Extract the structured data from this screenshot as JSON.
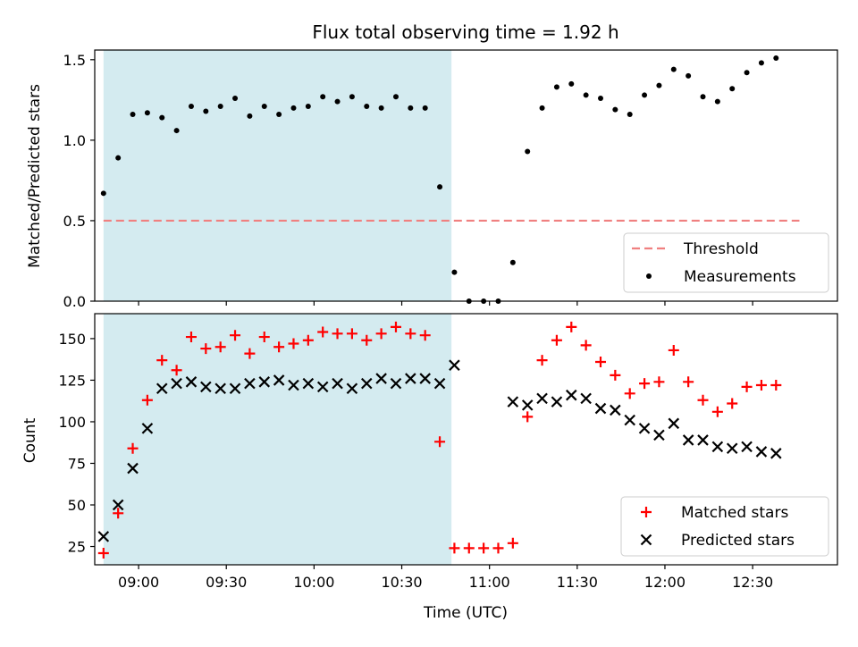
{
  "chart_data": {
    "title": "Flux total observing time = 1.92 h",
    "xlabel": "Time (UTC)",
    "x_unit": "time of day (HH:MM)",
    "xlim": [
      "08:45",
      "12:59"
    ],
    "xticks": [
      "09:00",
      "09:30",
      "10:00",
      "10:30",
      "11:00",
      "11:30",
      "12:00",
      "12:30"
    ],
    "shaded_span": {
      "from": "08:48",
      "to": "10:47",
      "color": "#d4ebf0"
    },
    "panels": [
      {
        "type": "scatter",
        "ylabel": "Matched/Predicted stars",
        "ylim": [
          0,
          1.56
        ],
        "yticks": [
          "0.0",
          "0.5",
          "1.0",
          "1.5"
        ],
        "legend_position": "lower right",
        "threshold": {
          "name": "Threshold",
          "value": 0.5,
          "color": "#f08080",
          "style": "dashed",
          "from": "08:48",
          "to": "12:46"
        },
        "series": [
          {
            "name": "Measurements",
            "marker": "dot",
            "color": "#000000",
            "x": [
              "08:48",
              "08:53",
              "08:58",
              "09:03",
              "09:08",
              "09:13",
              "09:18",
              "09:23",
              "09:28",
              "09:33",
              "09:38",
              "09:43",
              "09:48",
              "09:53",
              "09:58",
              "10:03",
              "10:08",
              "10:13",
              "10:18",
              "10:23",
              "10:28",
              "10:33",
              "10:38",
              "10:43",
              "10:48",
              "10:53",
              "10:58",
              "11:03",
              "11:08",
              "11:13",
              "11:18",
              "11:23",
              "11:28",
              "11:33",
              "11:38",
              "11:43",
              "11:48",
              "11:53",
              "11:58",
              "12:03",
              "12:08",
              "12:13",
              "12:18",
              "12:23",
              "12:28",
              "12:33",
              "12:38",
              "12:43",
              "12:48"
            ],
            "y": [
              0.67,
              0.89,
              1.16,
              1.17,
              1.14,
              1.06,
              1.21,
              1.18,
              1.21,
              1.26,
              1.15,
              1.21,
              1.16,
              1.2,
              1.21,
              1.27,
              1.24,
              1.27,
              1.21,
              1.2,
              1.27,
              1.2,
              1.2,
              0.71,
              0.18,
              0.0,
              0.0,
              0.0,
              0.24,
              0.93,
              1.2,
              1.33,
              1.35,
              1.28,
              1.26,
              1.19,
              1.16,
              1.28,
              1.34,
              1.44,
              1.4,
              1.27,
              1.24,
              1.32,
              1.42,
              1.48,
              1.51,
              null,
              null
            ]
          }
        ]
      },
      {
        "type": "scatter",
        "ylabel": "Count",
        "ylim": [
          14,
          165
        ],
        "yticks": [
          "25",
          "50",
          "75",
          "100",
          "125",
          "150"
        ],
        "legend_position": "lower right",
        "series": [
          {
            "name": "Matched stars",
            "marker": "plus",
            "color": "#ff0000",
            "x": [
              "08:48",
              "08:53",
              "08:58",
              "09:03",
              "09:08",
              "09:13",
              "09:18",
              "09:23",
              "09:28",
              "09:33",
              "09:38",
              "09:43",
              "09:48",
              "09:53",
              "09:58",
              "10:03",
              "10:08",
              "10:13",
              "10:18",
              "10:23",
              "10:28",
              "10:33",
              "10:38",
              "10:43",
              "10:48",
              "10:53",
              "10:58",
              "11:03",
              "11:08",
              "11:13",
              "11:18",
              "11:23",
              "11:28",
              "11:33",
              "11:38",
              "11:43",
              "11:48",
              "11:53",
              "11:58",
              "12:03",
              "12:08",
              "12:13",
              "12:18",
              "12:23",
              "12:28",
              "12:33",
              "12:38",
              "12:43",
              "12:48"
            ],
            "y": [
              21,
              45,
              84,
              113,
              137,
              131,
              151,
              144,
              145,
              152,
              141,
              151,
              145,
              147,
              149,
              154,
              153,
              153,
              149,
              153,
              157,
              153,
              152,
              88,
              24,
              24,
              24,
              24,
              27,
              103,
              137,
              149,
              157,
              146,
              136,
              128,
              117,
              123,
              124,
              143,
              124,
              113,
              106,
              111,
              121,
              122,
              122,
              null,
              null
            ]
          },
          {
            "name": "Predicted stars",
            "marker": "x",
            "color": "#000000",
            "x": [
              "08:48",
              "08:53",
              "08:58",
              "09:03",
              "09:08",
              "09:13",
              "09:18",
              "09:23",
              "09:28",
              "09:33",
              "09:38",
              "09:43",
              "09:48",
              "09:53",
              "09:58",
              "10:03",
              "10:08",
              "10:13",
              "10:18",
              "10:23",
              "10:28",
              "10:33",
              "10:38",
              "10:43",
              "10:48",
              "10:53",
              "10:58",
              "11:03",
              "11:08",
              "11:13",
              "11:18",
              "11:23",
              "11:28",
              "11:33",
              "11:38",
              "11:43",
              "11:48",
              "11:53",
              "11:58",
              "12:03",
              "12:08",
              "12:13",
              "12:18",
              "12:23",
              "12:28",
              "12:33",
              "12:38",
              "12:43",
              "12:48"
            ],
            "y": [
              31,
              50,
              72,
              96,
              120,
              123,
              124,
              121,
              120,
              120,
              123,
              124,
              125,
              122,
              123,
              121,
              123,
              120,
              123,
              126,
              123,
              126,
              126,
              123,
              134,
              null,
              null,
              null,
              112,
              110,
              114,
              112,
              116,
              114,
              108,
              107,
              101,
              96,
              92,
              99,
              89,
              89,
              85,
              84,
              85,
              82,
              81,
              null,
              null
            ]
          }
        ]
      }
    ]
  }
}
